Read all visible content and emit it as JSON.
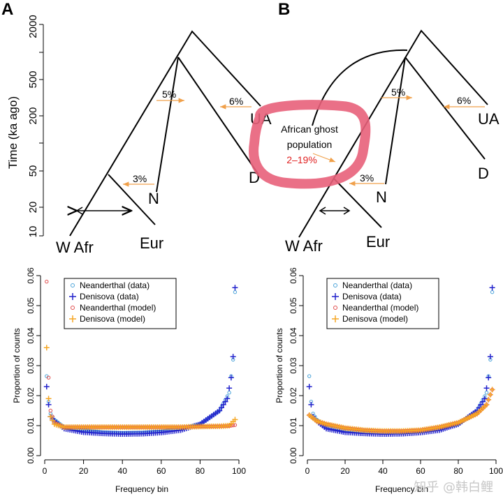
{
  "panels": {
    "a": "A",
    "b": "B"
  },
  "tree_a": {
    "yaxis_label": "Time (ka ago)",
    "yticks": [
      "2000",
      "500",
      "200",
      "50",
      "20",
      "10"
    ],
    "labels": {
      "w_afr": "W Afr",
      "eur": "Eur",
      "n": "N",
      "d": "D",
      "ua": "UA"
    },
    "flows": {
      "p5": "5%",
      "p6": "6%",
      "p3": "3%"
    }
  },
  "tree_b": {
    "labels": {
      "w_afr": "W Afr",
      "eur": "Eur",
      "n": "N",
      "d": "D",
      "ua": "UA"
    },
    "flows": {
      "p5": "5%",
      "p6": "6%",
      "p3": "3%"
    },
    "ghost": {
      "line1": "African ghost",
      "line2": "population",
      "pct": "2–19%"
    }
  },
  "colors": {
    "neanderthal_data": "#4aa3d9",
    "denisova_data": "#2222cc",
    "neanderthal_model": "#e04b4b",
    "denisova_model": "#f5a623",
    "flow_arrow": "#f0a04a",
    "highlight": "#e8607a",
    "ghost_pct": "#e02020"
  },
  "chart_data": [
    {
      "type": "scatter",
      "panel": "A-bottom",
      "xlabel": "Frequency bin",
      "ylabel": "Proportion of counts",
      "xlim": [
        0,
        100
      ],
      "ylim": [
        0,
        0.06
      ],
      "xticks": [
        "0",
        "20",
        "40",
        "60",
        "80",
        "100"
      ],
      "yticks": [
        "0.00",
        "0.01",
        "0.02",
        "0.03",
        "0.04",
        "0.05",
        "0.06"
      ],
      "legend": [
        "Neanderthal (data)",
        "Denisova (data)",
        "Neanderthal (model)",
        "Denisova (model)"
      ],
      "legend_position": "top-left",
      "series": [
        {
          "name": "Neanderthal (data)",
          "marker": "circle",
          "x": [
            1,
            2,
            3,
            5,
            10,
            20,
            30,
            40,
            50,
            60,
            70,
            80,
            90,
            95,
            97,
            98
          ],
          "y": [
            0.0265,
            0.018,
            0.014,
            0.012,
            0.0095,
            0.0085,
            0.0078,
            0.0076,
            0.0077,
            0.0081,
            0.009,
            0.0105,
            0.015,
            0.021,
            0.032,
            0.0545
          ]
        },
        {
          "name": "Denisova (data)",
          "marker": "plus",
          "x": [
            1,
            2,
            3,
            5,
            10,
            20,
            30,
            40,
            50,
            60,
            70,
            80,
            90,
            94,
            96,
            97,
            98
          ],
          "y": [
            0.023,
            0.017,
            0.013,
            0.0115,
            0.009,
            0.0078,
            0.0074,
            0.0072,
            0.0073,
            0.0077,
            0.0085,
            0.0105,
            0.015,
            0.019,
            0.026,
            0.033,
            0.056
          ]
        },
        {
          "name": "Neanderthal (model)",
          "marker": "circle",
          "x": [
            1,
            2,
            3,
            5,
            10,
            20,
            30,
            40,
            50,
            60,
            70,
            80,
            90,
            95,
            98
          ],
          "y": [
            0.058,
            0.026,
            0.015,
            0.011,
            0.0095,
            0.0095,
            0.0095,
            0.0095,
            0.0095,
            0.0095,
            0.0095,
            0.0097,
            0.0098,
            0.0099,
            0.0102
          ]
        },
        {
          "name": "Denisova (model)",
          "marker": "plus",
          "x": [
            1,
            2,
            3,
            5,
            10,
            20,
            30,
            40,
            50,
            60,
            70,
            80,
            90,
            95,
            98
          ],
          "y": [
            0.036,
            0.019,
            0.013,
            0.0105,
            0.0095,
            0.0095,
            0.0095,
            0.0095,
            0.0095,
            0.0095,
            0.0095,
            0.0097,
            0.0098,
            0.01,
            0.012
          ]
        }
      ]
    },
    {
      "type": "scatter",
      "panel": "B-bottom",
      "xlabel": "Frequency bin",
      "ylabel": "Proportion of counts",
      "xlim": [
        0,
        100
      ],
      "ylim": [
        0,
        0.06
      ],
      "xticks": [
        "0",
        "20",
        "40",
        "60",
        "80",
        "100"
      ],
      "yticks": [
        "0.00",
        "0.01",
        "0.02",
        "0.03",
        "0.04",
        "0.05",
        "0.06"
      ],
      "legend": [
        "Neanderthal (data)",
        "Denisova (data)",
        "Neanderthal (model)",
        "Denisova (model)"
      ],
      "legend_position": "top-left",
      "series": [
        {
          "name": "Neanderthal (data)",
          "marker": "circle",
          "x": [
            1,
            2,
            3,
            5,
            10,
            20,
            30,
            40,
            50,
            60,
            70,
            80,
            90,
            95,
            97,
            98
          ],
          "y": [
            0.0265,
            0.018,
            0.014,
            0.012,
            0.0095,
            0.0085,
            0.0078,
            0.0076,
            0.0077,
            0.0081,
            0.009,
            0.0105,
            0.015,
            0.021,
            0.032,
            0.0545
          ]
        },
        {
          "name": "Denisova (data)",
          "marker": "plus",
          "x": [
            1,
            2,
            3,
            5,
            10,
            20,
            30,
            40,
            50,
            60,
            70,
            80,
            90,
            94,
            96,
            97,
            98
          ],
          "y": [
            0.023,
            0.017,
            0.013,
            0.0115,
            0.009,
            0.0078,
            0.0074,
            0.0072,
            0.0073,
            0.0077,
            0.0085,
            0.0105,
            0.015,
            0.019,
            0.026,
            0.033,
            0.056
          ]
        },
        {
          "name": "Neanderthal (model)",
          "marker": "circle",
          "x": [
            1,
            5,
            10,
            20,
            30,
            40,
            50,
            60,
            70,
            80,
            90,
            95,
            98
          ],
          "y": [
            0.0135,
            0.0115,
            0.0105,
            0.0092,
            0.0085,
            0.0082,
            0.0082,
            0.0085,
            0.0095,
            0.011,
            0.014,
            0.017,
            0.022
          ]
        },
        {
          "name": "Denisova (model)",
          "marker": "plus",
          "x": [
            1,
            5,
            10,
            20,
            30,
            40,
            50,
            60,
            70,
            80,
            90,
            95,
            98
          ],
          "y": [
            0.0135,
            0.0115,
            0.0105,
            0.0092,
            0.0085,
            0.0082,
            0.0082,
            0.0085,
            0.0095,
            0.011,
            0.014,
            0.017,
            0.022
          ]
        }
      ]
    }
  ],
  "watermark": "知乎 @韩白鲤"
}
